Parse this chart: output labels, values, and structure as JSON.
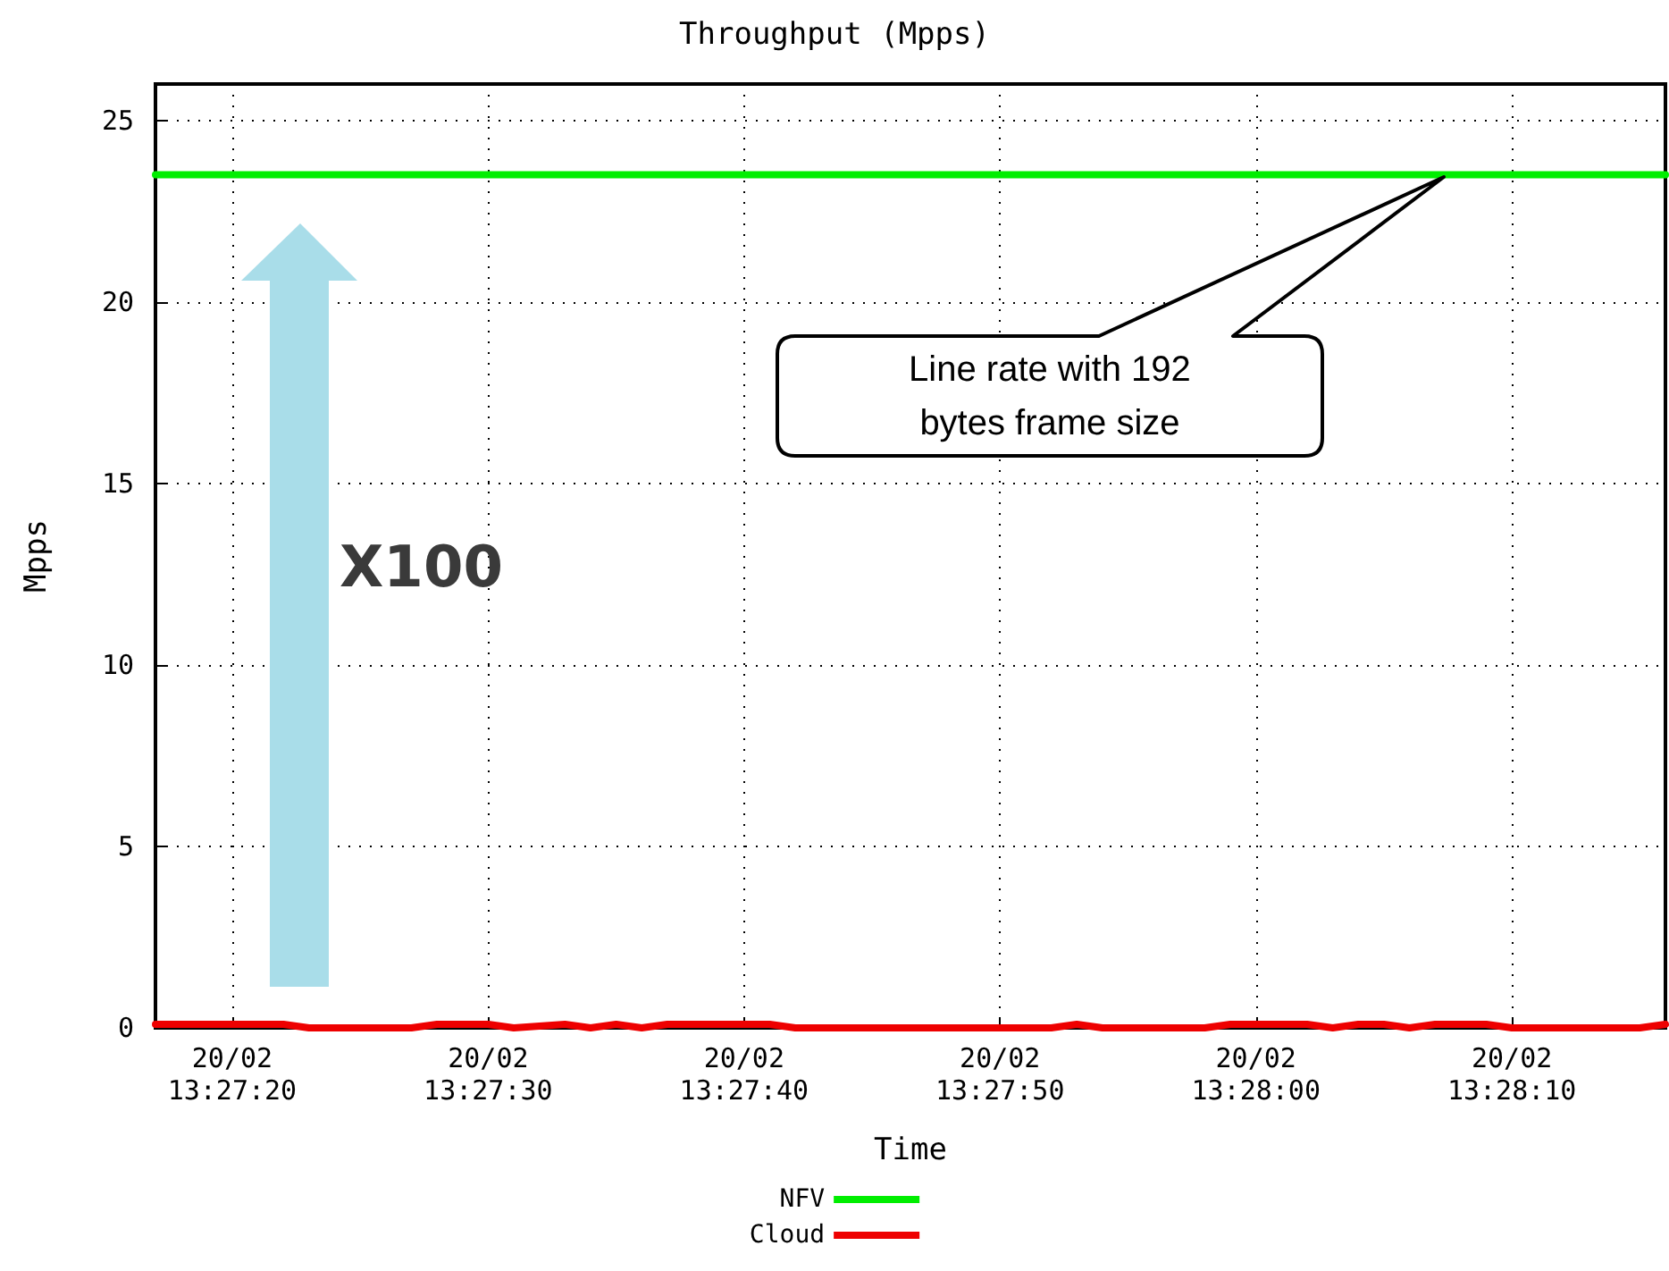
{
  "chart_data": {
    "type": "line",
    "title": "Throughput (Mpps)",
    "xlabel": "Time",
    "ylabel": "Mpps",
    "annotations": [
      "Line rate with 192 bytes frame size",
      "X100"
    ],
    "xlim": [
      "--02-20T13:27:17",
      "--02-20T13:28:16"
    ],
    "xticks": [
      {
        "value": "--02-20T13:27:20",
        "label": "20/02\n13:27:20"
      },
      {
        "value": "--02-20T13:27:30",
        "label": "20/02\n13:27:30"
      },
      {
        "value": "--02-20T13:27:40",
        "label": "20/02\n13:27:40"
      },
      {
        "value": "--02-20T13:27:50",
        "label": "20/02\n13:27:50"
      },
      {
        "value": "--02-20T13:28:00",
        "label": "20/02\n13:28:00"
      },
      {
        "value": "--02-20T13:28:10",
        "label": "20/02\n13:28:10"
      }
    ],
    "ylim": [
      0,
      26
    ],
    "yticks": [
      0,
      5,
      10,
      15,
      20,
      25
    ],
    "grid": true,
    "legend": "bottom",
    "marker": "none",
    "line_style": "solid",
    "series": [
      {
        "name": "NFV",
        "color": "#00ee00",
        "x": [
          "--02-20T13:27:17",
          "--02-20T13:28:16"
        ],
        "values": [
          23.5,
          23.5
        ]
      },
      {
        "name": "Cloud",
        "color": "#ee0000",
        "x": [
          "--02-20T13:27:17",
          "--02-20T13:27:22",
          "--02-20T13:27:23",
          "--02-20T13:27:27",
          "--02-20T13:27:28",
          "--02-20T13:27:30",
          "--02-20T13:27:31",
          "--02-20T13:27:33",
          "--02-20T13:27:34",
          "--02-20T13:27:35",
          "--02-20T13:27:36",
          "--02-20T13:27:37",
          "--02-20T13:27:38",
          "--02-20T13:27:41",
          "--02-20T13:27:42",
          "--02-20T13:27:52",
          "--02-20T13:27:53",
          "--02-20T13:27:54",
          "--02-20T13:27:58",
          "--02-20T13:27:59",
          "--02-20T13:28:02",
          "--02-20T13:28:03",
          "--02-20T13:28:04",
          "--02-20T13:28:05",
          "--02-20T13:28:06",
          "--02-20T13:28:07",
          "--02-20T13:28:09",
          "--02-20T13:28:10",
          "--02-20T13:28:15",
          "--02-20T13:28:16"
        ],
        "values": [
          0.1,
          0.1,
          0,
          0,
          0.1,
          0.1,
          0,
          0.1,
          0,
          0.1,
          0,
          0.1,
          0.1,
          0.1,
          0,
          0,
          0.1,
          0,
          0,
          0.1,
          0.1,
          0,
          0.1,
          0.1,
          0,
          0.1,
          0.1,
          0,
          0,
          0.1
        ]
      }
    ]
  }
}
